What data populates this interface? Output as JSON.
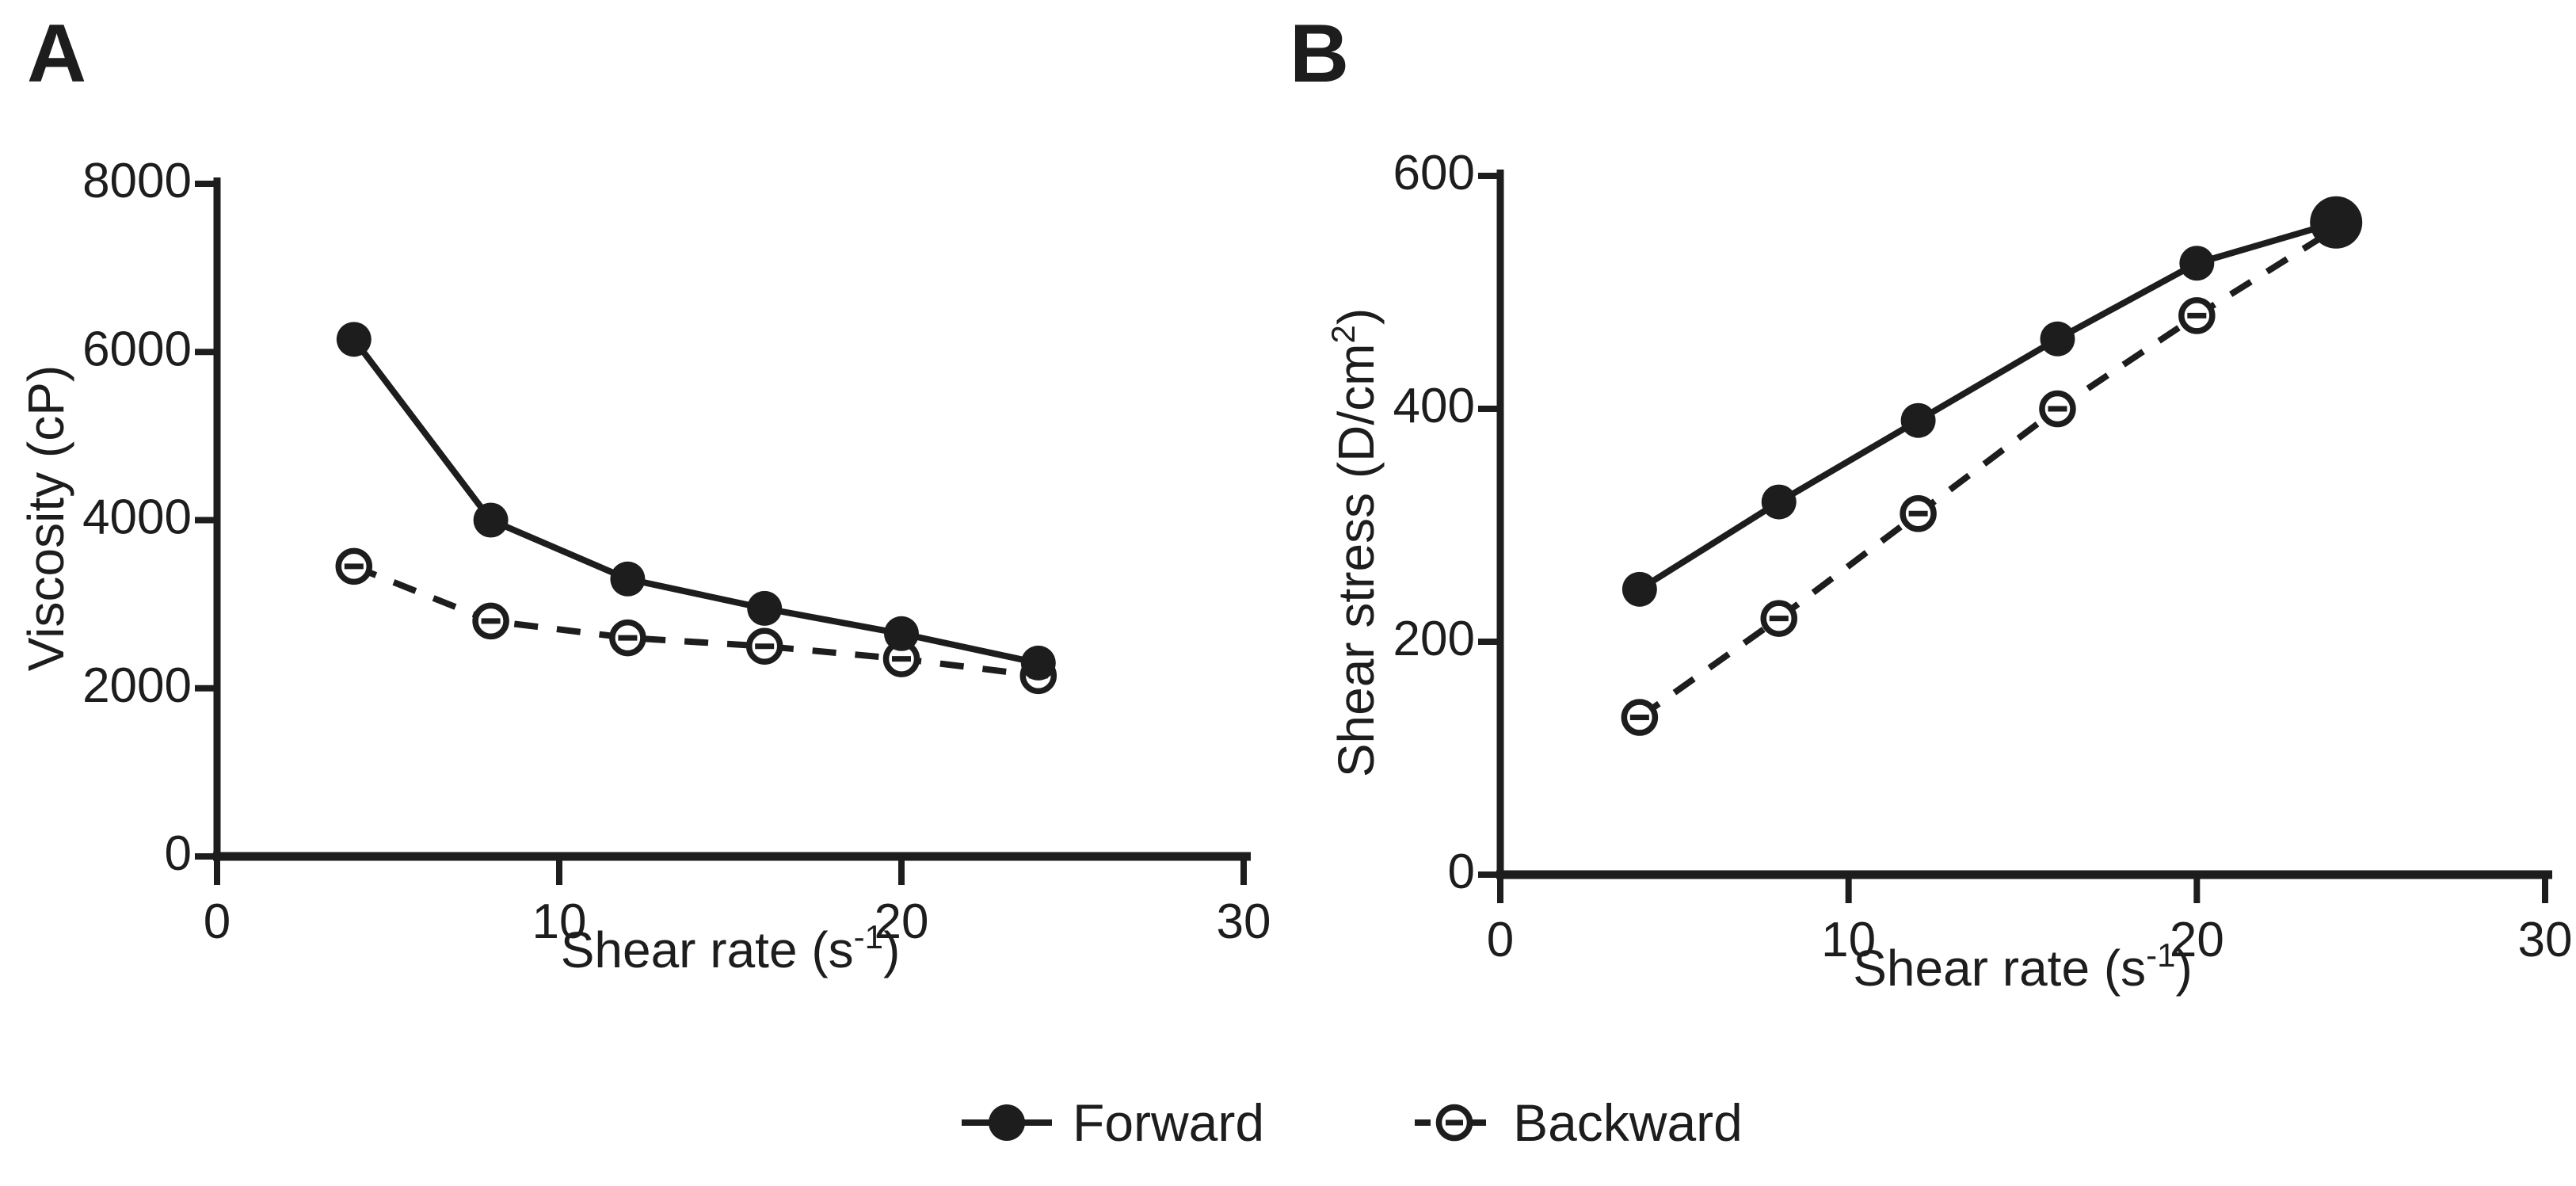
{
  "colors": {
    "ink": "#1d1d1d",
    "background": "#ffffff"
  },
  "legend": {
    "items": [
      {
        "label": "Forward",
        "marker": "filled-circle-solid-line"
      },
      {
        "label": "Backward",
        "marker": "open-circle-dashed-line"
      }
    ]
  },
  "chart_data": [
    {
      "id": "A",
      "panel_label": "A",
      "type": "line",
      "title": "",
      "xlabel_text": "Shear rate (s-1)",
      "xlabel": {
        "pre": "Shear rate (s",
        "sup": "-1",
        "post": ")"
      },
      "ylabel_text": "Viscosity (cP)",
      "ylabel": {
        "pre": "Viscosity (cP)",
        "sup": "",
        "post": ""
      },
      "x": [
        4,
        8,
        12,
        16,
        20,
        24
      ],
      "series": [
        {
          "name": "Forward",
          "line_style": "solid",
          "marker": "filled-circle",
          "values": [
            6150,
            4000,
            3300,
            2950,
            2650,
            2300
          ]
        },
        {
          "name": "Backward",
          "line_style": "dashed",
          "marker": "open-circle",
          "values": [
            3450,
            2800,
            2600,
            2500,
            2350,
            2150
          ]
        }
      ],
      "xlim": [
        0,
        30
      ],
      "ylim": [
        0,
        8000
      ],
      "xticks": [
        0,
        10,
        20,
        30
      ],
      "yticks": [
        0,
        2000,
        4000,
        6000,
        8000
      ],
      "grid": false,
      "legend_position": "shared-bottom-center"
    },
    {
      "id": "B",
      "panel_label": "B",
      "type": "line",
      "title": "",
      "xlabel_text": "Shear rate (s-1)",
      "xlabel": {
        "pre": "Shear rate (s",
        "sup": "-1",
        "post": ")"
      },
      "ylabel_text": "Shear stress (D/cm2)",
      "ylabel": {
        "pre": "Shear stress (D/cm",
        "sup": "2",
        "post": ")"
      },
      "x": [
        4,
        8,
        12,
        16,
        20,
        24
      ],
      "series": [
        {
          "name": "Forward",
          "line_style": "solid",
          "marker": "filled-circle",
          "values": [
            245,
            320,
            390,
            460,
            525,
            560
          ],
          "marker_sizes": [
            22,
            22,
            22,
            22,
            22,
            33
          ]
        },
        {
          "name": "Backward",
          "line_style": "dashed",
          "marker": "open-circle",
          "values": [
            135,
            220,
            310,
            400,
            480,
            555
          ]
        }
      ],
      "xlim": [
        0,
        30
      ],
      "ylim": [
        0,
        600
      ],
      "xticks": [
        0,
        10,
        20,
        30
      ],
      "yticks": [
        0,
        200,
        400,
        600
      ],
      "grid": false,
      "legend_position": "shared-bottom-center"
    }
  ]
}
